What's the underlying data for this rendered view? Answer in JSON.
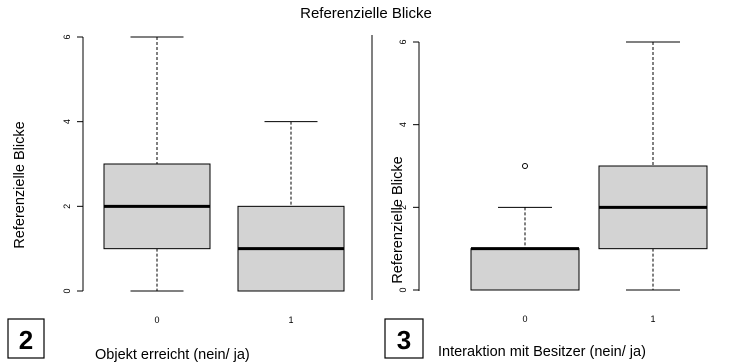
{
  "title": "Referenzielle Blicke",
  "chart_data": [
    {
      "type": "box",
      "panel_label": "2",
      "ylabel": "Referenzielle Blicke",
      "xlabel": "Objekt erreicht (nein/ ja)",
      "categories": [
        "0",
        "1"
      ],
      "ylim": [
        0,
        6
      ],
      "yticks": [
        0,
        2,
        4,
        6
      ],
      "boxes": [
        {
          "category": "0",
          "min": 0,
          "q1": 1,
          "median": 2,
          "q3": 3,
          "max": 6,
          "outliers": []
        },
        {
          "category": "1",
          "min": 0,
          "q1": 0,
          "median": 1,
          "q3": 2,
          "max": 4,
          "outliers": []
        }
      ],
      "box_fill": "#d3d3d3"
    },
    {
      "type": "box",
      "panel_label": "3",
      "ylabel": "Referenzielle Blicke",
      "xlabel": "Interaktion mit Besitzer (nein/ ja)",
      "categories": [
        "0",
        "1"
      ],
      "ylim": [
        0,
        6
      ],
      "yticks": [
        0,
        2,
        4,
        6
      ],
      "boxes": [
        {
          "category": "0",
          "min": 0,
          "q1": 0,
          "median": 1,
          "q3": 1,
          "max": 2,
          "outliers": [
            3
          ]
        },
        {
          "category": "1",
          "min": 0,
          "q1": 1,
          "median": 2,
          "q3": 3,
          "max": 6,
          "outliers": []
        }
      ],
      "box_fill": "#d3d3d3"
    }
  ]
}
